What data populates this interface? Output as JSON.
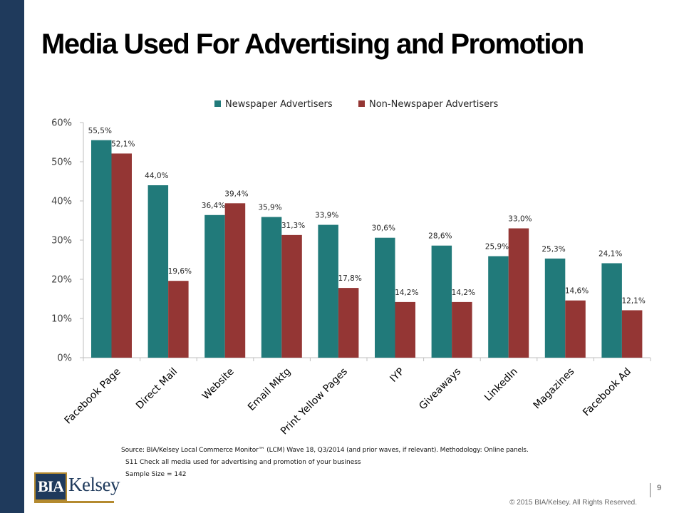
{
  "page": {
    "title": "Media Used For Advertising and Promotion"
  },
  "chart_data": {
    "type": "bar",
    "title": "",
    "xlabel": "",
    "ylabel": "",
    "categories": [
      "Facebook Page",
      "Direct Mail",
      "Website",
      "Email Mktg",
      "Print Yellow Pages",
      "IYP",
      "Giveaways",
      "LinkedIn",
      "Magazines",
      "Facebook Ad"
    ],
    "series": [
      {
        "name": "Newspaper Advertisers",
        "color": "#217a7a",
        "values": [
          55.5,
          44.0,
          36.4,
          35.9,
          33.9,
          30.6,
          28.6,
          25.9,
          25.3,
          24.1
        ],
        "labels": [
          "55,5%",
          "44,0%",
          "36,4%",
          "35,9%",
          "33,9%",
          "30,6%",
          "28,6%",
          "25,9%",
          "25,3%",
          "24,1%"
        ]
      },
      {
        "name": "Non-Newspaper Advertisers",
        "color": "#943634",
        "values": [
          52.1,
          19.6,
          39.4,
          31.3,
          17.8,
          14.2,
          14.2,
          33.0,
          14.6,
          12.1
        ],
        "labels": [
          "52,1%",
          "19,6%",
          "39,4%",
          "31,3%",
          "17,8%",
          "14,2%",
          "14,2%",
          "33,0%",
          "14,6%",
          "12,1%"
        ]
      }
    ],
    "ylim": [
      0,
      60
    ],
    "yticks": [
      0,
      10,
      20,
      30,
      40,
      50,
      60
    ],
    "ytick_labels": [
      "0%",
      "10%",
      "20%",
      "30%",
      "40%",
      "50%",
      "60%"
    ],
    "legend": "top",
    "grid": false
  },
  "notes": {
    "source": "Source: BIA/Kelsey Local Commerce Monitor™ (LCM) Wave 18, Q3/2014 (and prior waves, if relevant). Methodology: Online panels.",
    "question": "S11 Check all media used for advertising and promotion of your business",
    "sample": "Sample Size = 142"
  },
  "branding": {
    "logo_box": "BIA",
    "logo_word": "Kelsey",
    "page_number": "9",
    "copyright": "© 2015 BIA/Kelsey. All Rights Reserved."
  }
}
